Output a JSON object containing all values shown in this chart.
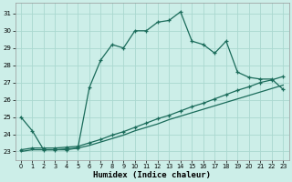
{
  "xlabel": "Humidex (Indice chaleur)",
  "bg_color": "#cceee8",
  "grid_color": "#aad8d0",
  "line_color": "#1a6b5a",
  "xlim": [
    -0.5,
    23.5
  ],
  "ylim": [
    22.5,
    31.6
  ],
  "yticks": [
    23,
    24,
    25,
    26,
    27,
    28,
    29,
    30,
    31
  ],
  "xticks": [
    0,
    1,
    2,
    3,
    4,
    5,
    6,
    7,
    8,
    9,
    10,
    11,
    12,
    13,
    14,
    15,
    16,
    17,
    18,
    19,
    20,
    21,
    22,
    23
  ],
  "line1_x": [
    0,
    1,
    2,
    3,
    4,
    5,
    6,
    7,
    8,
    9,
    10,
    11,
    12,
    13,
    14,
    15,
    16,
    17,
    18,
    19,
    20,
    21,
    22,
    23
  ],
  "line1_y": [
    25.0,
    24.2,
    23.1,
    23.1,
    23.1,
    23.2,
    26.7,
    28.3,
    29.2,
    29.0,
    30.0,
    30.0,
    30.5,
    30.6,
    31.1,
    29.4,
    29.2,
    28.7,
    29.4,
    27.6,
    27.3,
    27.2,
    27.2,
    26.6
  ],
  "line2_x": [
    0,
    1,
    2,
    3,
    4,
    5,
    6,
    7,
    8,
    9,
    10,
    11,
    12,
    13,
    14,
    15,
    16,
    17,
    18,
    19,
    20,
    21,
    22,
    23
  ],
  "line2_y": [
    23.0,
    23.1,
    23.1,
    23.1,
    23.15,
    23.2,
    23.35,
    23.55,
    23.75,
    23.95,
    24.2,
    24.4,
    24.6,
    24.85,
    25.05,
    25.25,
    25.45,
    25.65,
    25.85,
    26.05,
    26.25,
    26.45,
    26.65,
    26.85
  ],
  "line3_x": [
    0,
    1,
    2,
    3,
    4,
    5,
    6,
    7,
    8,
    9,
    10,
    11,
    12,
    13,
    14,
    15,
    16,
    17,
    18,
    19,
    20,
    21,
    22,
    23
  ],
  "line3_y": [
    23.1,
    23.2,
    23.2,
    23.2,
    23.25,
    23.3,
    23.5,
    23.7,
    23.95,
    24.15,
    24.4,
    24.65,
    24.9,
    25.1,
    25.35,
    25.6,
    25.8,
    26.05,
    26.3,
    26.55,
    26.75,
    27.0,
    27.15,
    27.35
  ]
}
